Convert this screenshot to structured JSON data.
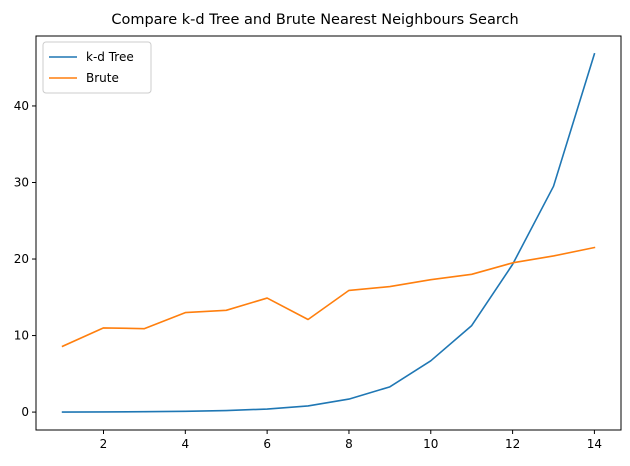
{
  "chart_data": {
    "type": "line",
    "title": "Compare k-d Tree and Brute Nearest Neighbours Search",
    "xlabel": "",
    "ylabel": "",
    "x": [
      1,
      2,
      3,
      4,
      5,
      6,
      7,
      8,
      9,
      10,
      11,
      12,
      13,
      14
    ],
    "series": [
      {
        "name": "k-d Tree",
        "color": "#1f77b4",
        "values": [
          0.0,
          0.02,
          0.05,
          0.1,
          0.2,
          0.4,
          0.8,
          1.7,
          3.3,
          6.7,
          11.3,
          19.3,
          29.5,
          46.8
        ]
      },
      {
        "name": "Brute",
        "color": "#ff7f0e",
        "values": [
          8.6,
          11.0,
          10.9,
          13.0,
          13.3,
          14.9,
          12.1,
          15.9,
          16.4,
          17.3,
          18.0,
          19.5,
          20.4,
          21.5
        ]
      }
    ],
    "xlim": [
      0.35,
      14.65
    ],
    "ylim": [
      -2.34,
      49.14
    ],
    "xticks": [
      2,
      4,
      6,
      8,
      10,
      12,
      14
    ],
    "yticks": [
      0,
      10,
      20,
      30,
      40
    ],
    "grid": false,
    "legend_position": "top-left"
  }
}
